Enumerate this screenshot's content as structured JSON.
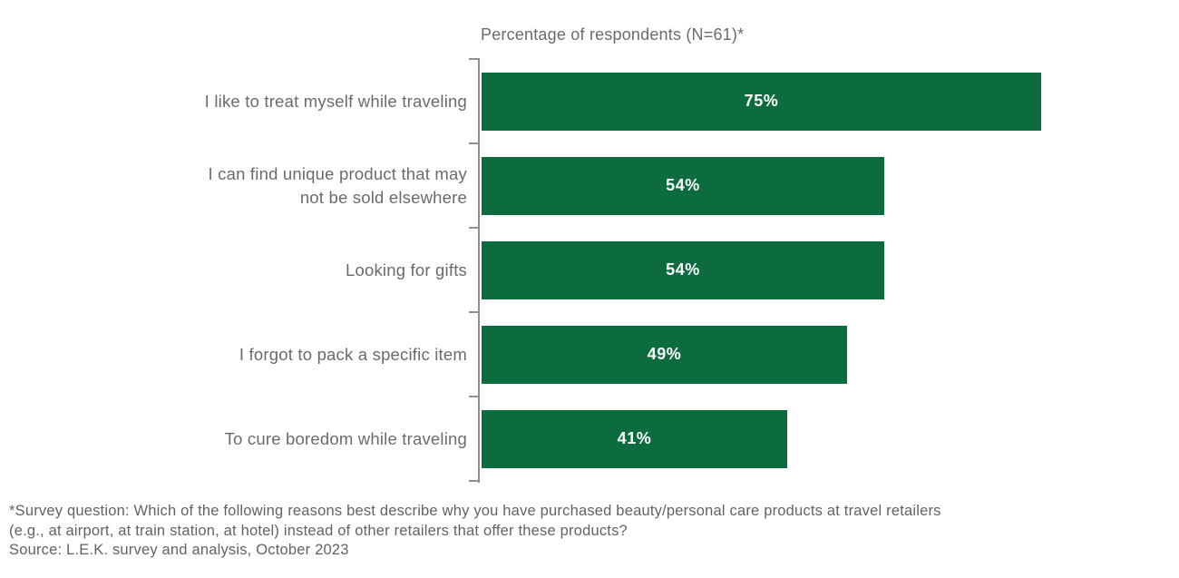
{
  "chart_data": {
    "type": "bar",
    "orientation": "horizontal",
    "title": "Percentage of respondents (N=61)*",
    "categories": [
      "I like to treat myself while traveling",
      "I can find unique product that may\nnot be sold elsewhere",
      "Looking for gifts",
      "I forgot to pack a specific item",
      "To cure boredom while traveling"
    ],
    "values": [
      75,
      54,
      54,
      49,
      41
    ],
    "value_labels": [
      "75%",
      "54%",
      "54%",
      "49%",
      "41%"
    ],
    "xlabel": "",
    "ylabel": "",
    "xlim": [
      0,
      100
    ],
    "grid": false,
    "legend": false,
    "bar_color": "#0d6c3e",
    "value_label_color": "#ffffff",
    "axis_color": "#8e8e8e",
    "label_color": "#6b6b6b"
  },
  "footer": {
    "line1": "*Survey question: Which of the following reasons best describe why you have purchased beauty/personal care products at travel retailers",
    "line2": "(e.g., at airport, at train station, at hotel) instead of other retailers that offer these products?",
    "source": "Source: L.E.K. survey and analysis, October 2023"
  }
}
